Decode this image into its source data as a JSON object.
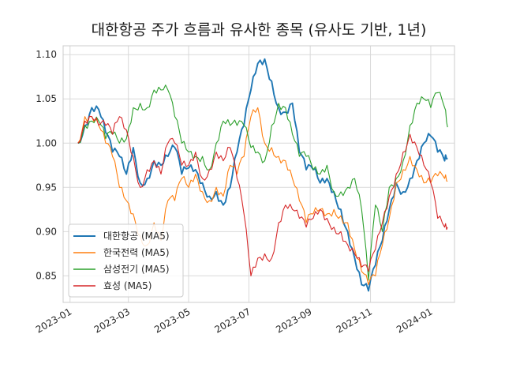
{
  "chart_data": {
    "type": "line",
    "title": "대한항공 주가 흐름과 유사한 종목 (유사도 기반, 1년)",
    "xlabel": "",
    "ylabel": "",
    "x_ticks": [
      "2023-01",
      "2023-03",
      "2023-05",
      "2023-07",
      "2023-09",
      "2023-11",
      "2024-01"
    ],
    "y_ticks": [
      "0.85",
      "0.90",
      "0.95",
      "1.00",
      "1.05",
      "1.10"
    ],
    "ylim": [
      0.82,
      1.11
    ],
    "xlim": [
      "2022-12-25",
      "2024-01-25"
    ],
    "grid": true,
    "legend_position": "lower-left",
    "series": [
      {
        "name": "대한항공 (MA5)",
        "color": "#1f77b4",
        "points": [
          [
            "2023-01-09",
            1.0
          ],
          [
            "2023-01-16",
            1.02
          ],
          [
            "2023-01-23",
            1.04
          ],
          [
            "2023-01-30",
            1.038
          ],
          [
            "2023-02-06",
            1.012
          ],
          [
            "2023-02-13",
            0.99
          ],
          [
            "2023-02-20",
            0.985
          ],
          [
            "2023-02-27",
            0.965
          ],
          [
            "2023-03-06",
            0.995
          ],
          [
            "2023-03-13",
            0.955
          ],
          [
            "2023-03-20",
            0.96
          ],
          [
            "2023-03-27",
            0.98
          ],
          [
            "2023-04-03",
            0.975
          ],
          [
            "2023-04-10",
            0.985
          ],
          [
            "2023-04-17",
            0.995
          ],
          [
            "2023-04-24",
            0.965
          ],
          [
            "2023-05-01",
            0.972
          ],
          [
            "2023-05-08",
            0.97
          ],
          [
            "2023-05-15",
            0.955
          ],
          [
            "2023-05-22",
            0.94
          ],
          [
            "2023-05-29",
            0.945
          ],
          [
            "2023-06-05",
            0.93
          ],
          [
            "2023-06-12",
            0.95
          ],
          [
            "2023-06-19",
            0.99
          ],
          [
            "2023-06-26",
            1.02
          ],
          [
            "2023-07-03",
            1.06
          ],
          [
            "2023-07-10",
            1.09
          ],
          [
            "2023-07-17",
            1.095
          ],
          [
            "2023-07-24",
            1.07
          ],
          [
            "2023-07-31",
            1.04
          ],
          [
            "2023-08-07",
            1.035
          ],
          [
            "2023-08-14",
            1.045
          ],
          [
            "2023-08-21",
            0.99
          ],
          [
            "2023-08-28",
            0.97
          ],
          [
            "2023-09-04",
            0.97
          ],
          [
            "2023-09-11",
            0.955
          ],
          [
            "2023-09-18",
            0.96
          ],
          [
            "2023-09-25",
            0.945
          ],
          [
            "2023-10-02",
            0.925
          ],
          [
            "2023-10-09",
            0.9
          ],
          [
            "2023-10-16",
            0.87
          ],
          [
            "2023-10-23",
            0.84
          ],
          [
            "2023-10-30",
            0.833
          ],
          [
            "2023-11-06",
            0.862
          ],
          [
            "2023-11-13",
            0.89
          ],
          [
            "2023-11-20",
            0.925
          ],
          [
            "2023-11-27",
            0.955
          ],
          [
            "2023-12-04",
            0.945
          ],
          [
            "2023-12-11",
            0.96
          ],
          [
            "2023-12-18",
            0.98
          ],
          [
            "2023-12-25",
            1.0
          ],
          [
            "2024-01-01",
            1.008
          ],
          [
            "2024-01-08",
            0.99
          ],
          [
            "2024-01-15",
            0.98
          ],
          [
            "2024-01-18",
            0.983
          ]
        ]
      },
      {
        "name": "한국전력 (MA5)",
        "color": "#ff7f0e",
        "points": [
          [
            "2023-01-09",
            1.0
          ],
          [
            "2023-01-16",
            1.03
          ],
          [
            "2023-01-23",
            1.03
          ],
          [
            "2023-01-30",
            1.02
          ],
          [
            "2023-02-06",
            1.0
          ],
          [
            "2023-02-13",
            0.985
          ],
          [
            "2023-02-20",
            0.95
          ],
          [
            "2023-02-27",
            0.935
          ],
          [
            "2023-03-06",
            0.92
          ],
          [
            "2023-03-13",
            0.895
          ],
          [
            "2023-03-20",
            0.885
          ],
          [
            "2023-03-27",
            0.91
          ],
          [
            "2023-04-03",
            0.89
          ],
          [
            "2023-04-10",
            0.935
          ],
          [
            "2023-04-17",
            0.935
          ],
          [
            "2023-04-24",
            0.96
          ],
          [
            "2023-05-01",
            0.95
          ],
          [
            "2023-05-08",
            0.965
          ],
          [
            "2023-05-15",
            0.945
          ],
          [
            "2023-05-22",
            0.935
          ],
          [
            "2023-05-29",
            0.95
          ],
          [
            "2023-06-05",
            0.94
          ],
          [
            "2023-06-12",
            0.975
          ],
          [
            "2023-06-19",
            0.965
          ],
          [
            "2023-06-26",
            0.985
          ],
          [
            "2023-07-03",
            1.03
          ],
          [
            "2023-07-10",
            1.04
          ],
          [
            "2023-07-17",
            1.0
          ],
          [
            "2023-07-24",
            0.995
          ],
          [
            "2023-07-31",
            0.985
          ],
          [
            "2023-08-07",
            0.98
          ],
          [
            "2023-08-14",
            0.96
          ],
          [
            "2023-08-21",
            0.935
          ],
          [
            "2023-08-28",
            0.91
          ],
          [
            "2023-09-04",
            0.92
          ],
          [
            "2023-09-11",
            0.925
          ],
          [
            "2023-09-18",
            0.92
          ],
          [
            "2023-09-25",
            0.925
          ],
          [
            "2023-10-02",
            0.918
          ],
          [
            "2023-10-09",
            0.91
          ],
          [
            "2023-10-16",
            0.88
          ],
          [
            "2023-10-23",
            0.855
          ],
          [
            "2023-10-30",
            0.84
          ],
          [
            "2023-11-06",
            0.85
          ],
          [
            "2023-11-13",
            0.885
          ],
          [
            "2023-11-20",
            0.915
          ],
          [
            "2023-11-27",
            0.955
          ],
          [
            "2023-12-04",
            0.97
          ],
          [
            "2023-12-11",
            0.985
          ],
          [
            "2023-12-18",
            0.97
          ],
          [
            "2023-12-25",
            0.955
          ],
          [
            "2024-01-01",
            0.955
          ],
          [
            "2024-01-08",
            0.963
          ],
          [
            "2024-01-15",
            0.96
          ],
          [
            "2024-01-18",
            0.957
          ]
        ]
      },
      {
        "name": "삼성전기 (MA5)",
        "color": "#2ca02c",
        "points": [
          [
            "2023-01-09",
            1.0
          ],
          [
            "2023-01-16",
            1.02
          ],
          [
            "2023-01-23",
            1.025
          ],
          [
            "2023-01-30",
            1.025
          ],
          [
            "2023-02-06",
            1.005
          ],
          [
            "2023-02-13",
            1.01
          ],
          [
            "2023-02-20",
            1.0
          ],
          [
            "2023-02-27",
            1.005
          ],
          [
            "2023-03-06",
            1.04
          ],
          [
            "2023-03-13",
            1.045
          ],
          [
            "2023-03-20",
            1.04
          ],
          [
            "2023-03-27",
            1.06
          ],
          [
            "2023-04-03",
            1.06
          ],
          [
            "2023-04-10",
            1.06
          ],
          [
            "2023-04-17",
            1.03
          ],
          [
            "2023-04-24",
            1.0
          ],
          [
            "2023-05-01",
            0.99
          ],
          [
            "2023-05-08",
            0.985
          ],
          [
            "2023-05-15",
            0.985
          ],
          [
            "2023-05-22",
            0.97
          ],
          [
            "2023-05-29",
            1.0
          ],
          [
            "2023-06-05",
            1.025
          ],
          [
            "2023-06-12",
            1.02
          ],
          [
            "2023-06-19",
            1.02
          ],
          [
            "2023-06-26",
            1.02
          ],
          [
            "2023-07-03",
            0.995
          ],
          [
            "2023-07-10",
            0.99
          ],
          [
            "2023-07-17",
            0.98
          ],
          [
            "2023-07-24",
            1.02
          ],
          [
            "2023-07-31",
            1.045
          ],
          [
            "2023-08-07",
            1.04
          ],
          [
            "2023-08-14",
            1.01
          ],
          [
            "2023-08-21",
            0.985
          ],
          [
            "2023-08-28",
            0.985
          ],
          [
            "2023-09-04",
            0.97
          ],
          [
            "2023-09-11",
            0.965
          ],
          [
            "2023-09-18",
            0.975
          ],
          [
            "2023-09-25",
            0.945
          ],
          [
            "2023-10-02",
            0.945
          ],
          [
            "2023-10-09",
            0.95
          ],
          [
            "2023-10-16",
            0.96
          ],
          [
            "2023-10-23",
            0.925
          ],
          [
            "2023-10-30",
            0.845
          ],
          [
            "2023-11-06",
            0.93
          ],
          [
            "2023-11-13",
            0.9
          ],
          [
            "2023-11-20",
            0.95
          ],
          [
            "2023-11-27",
            0.96
          ],
          [
            "2023-12-04",
            0.98
          ],
          [
            "2023-12-11",
            1.02
          ],
          [
            "2023-12-18",
            1.045
          ],
          [
            "2023-12-25",
            1.05
          ],
          [
            "2024-01-01",
            1.04
          ],
          [
            "2024-01-08",
            1.057
          ],
          [
            "2024-01-15",
            1.04
          ],
          [
            "2024-01-18",
            1.018
          ]
        ]
      },
      {
        "name": "효성 (MA5)",
        "color": "#d62728",
        "points": [
          [
            "2023-01-09",
            1.0
          ],
          [
            "2023-01-16",
            1.025
          ],
          [
            "2023-01-23",
            1.03
          ],
          [
            "2023-01-30",
            1.02
          ],
          [
            "2023-02-06",
            1.02
          ],
          [
            "2023-02-13",
            1.01
          ],
          [
            "2023-02-20",
            1.03
          ],
          [
            "2023-02-27",
            1.015
          ],
          [
            "2023-03-06",
            0.985
          ],
          [
            "2023-03-13",
            0.95
          ],
          [
            "2023-03-20",
            0.97
          ],
          [
            "2023-03-27",
            0.98
          ],
          [
            "2023-04-03",
            0.965
          ],
          [
            "2023-04-10",
            1.0
          ],
          [
            "2023-04-17",
            1.0
          ],
          [
            "2023-04-24",
            0.975
          ],
          [
            "2023-05-01",
            0.975
          ],
          [
            "2023-05-08",
            0.99
          ],
          [
            "2023-05-15",
            0.96
          ],
          [
            "2023-05-22",
            0.97
          ],
          [
            "2023-05-29",
            0.99
          ],
          [
            "2023-06-05",
            0.98
          ],
          [
            "2023-06-12",
            0.995
          ],
          [
            "2023-06-19",
            0.96
          ],
          [
            "2023-06-26",
            0.92
          ],
          [
            "2023-07-03",
            0.85
          ],
          [
            "2023-07-10",
            0.87
          ],
          [
            "2023-07-17",
            0.875
          ],
          [
            "2023-07-24",
            0.87
          ],
          [
            "2023-07-31",
            0.91
          ],
          [
            "2023-08-07",
            0.93
          ],
          [
            "2023-08-14",
            0.925
          ],
          [
            "2023-08-21",
            0.915
          ],
          [
            "2023-08-28",
            0.905
          ],
          [
            "2023-09-04",
            0.915
          ],
          [
            "2023-09-11",
            0.925
          ],
          [
            "2023-09-18",
            0.915
          ],
          [
            "2023-09-25",
            0.905
          ],
          [
            "2023-10-02",
            0.9
          ],
          [
            "2023-10-09",
            0.885
          ],
          [
            "2023-10-16",
            0.875
          ],
          [
            "2023-10-23",
            0.86
          ],
          [
            "2023-10-30",
            0.855
          ],
          [
            "2023-11-06",
            0.88
          ],
          [
            "2023-11-13",
            0.91
          ],
          [
            "2023-11-20",
            0.94
          ],
          [
            "2023-11-27",
            0.965
          ],
          [
            "2023-12-04",
            0.99
          ],
          [
            "2023-12-11",
            1.01
          ],
          [
            "2023-12-18",
            0.995
          ],
          [
            "2023-12-25",
            0.975
          ],
          [
            "2024-01-01",
            0.955
          ],
          [
            "2024-01-08",
            0.915
          ],
          [
            "2024-01-15",
            0.905
          ],
          [
            "2024-01-18",
            0.905
          ]
        ]
      }
    ]
  }
}
